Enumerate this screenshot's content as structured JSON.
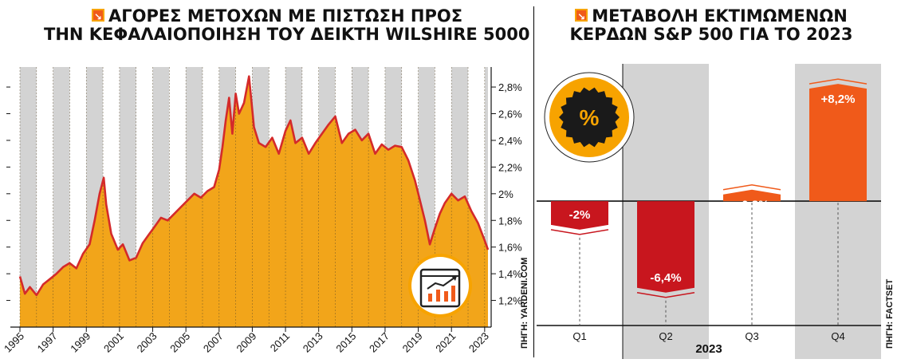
{
  "left": {
    "title_line1": "ΑΓΟΡΕΣ ΜΕΤΟΧΩΝ ΜΕ ΠΙΣΤΩΣΗ ΠΡΟΣ",
    "title_line2": "ΤΗΝ ΚΕΦΑΛΑΙΟΠΟΙΗΣΗ ΤΟΥ ΔΕΙΚΤΗ WILSHIRE 5000",
    "source": "ΠΗΓΗ: YARDENI.COM"
  },
  "right": {
    "title_line1": "ΜΕΤΑΒΟΛΗ ΕΚΤΙΜΩΜΕΝΩΝ",
    "title_line2": "ΚΕΡΔΩΝ S&P 500 ΓΙΑ ΤΟ 2023",
    "source": "ΠΗΓΗ: FACTSET",
    "badge_symbol": "%"
  },
  "colors": {
    "accent_orange": "#f05a1a",
    "area_fill": "#f2a51a",
    "line_red": "#d42a2a",
    "bar_red": "#c8161e",
    "bar_orange": "#f05a1a",
    "band_gray": "#d3d3d3"
  },
  "icons": [
    "arrow-down-right-icon",
    "chart-growth-icon",
    "percent-badge-icon"
  ],
  "chart_data": [
    {
      "type": "area",
      "x_ticks": [
        "1995",
        "1997",
        "1999",
        "2001",
        "2003",
        "2005",
        "2007",
        "2009",
        "2011",
        "2013",
        "2015",
        "2017",
        "2019",
        "2021",
        "2023"
      ],
      "y_ticks": [
        "1,2%",
        "1,4%",
        "1,6%",
        "1,8%",
        "2%",
        "2,2%",
        "2,4%",
        "2,6%",
        "2,8%"
      ],
      "xlim": [
        1995,
        2023.2
      ],
      "ylim": [
        1.0,
        2.95
      ],
      "unit": "%",
      "alternating_year_bands": true,
      "series": [
        {
          "x": [
            1995.0,
            1995.3,
            1995.6,
            1996.0,
            1996.4,
            1996.8,
            1997.2,
            1997.6,
            1998.0,
            1998.4,
            1998.8,
            1999.2,
            1999.5,
            1999.8,
            2000.05,
            2000.2,
            2000.5,
            2000.9,
            2001.2,
            2001.6,
            2002.0,
            2002.4,
            2002.8,
            2003.1,
            2003.5,
            2003.9,
            2004.3,
            2004.7,
            2005.1,
            2005.5,
            2005.9,
            2006.3,
            2006.7,
            2007.0,
            2007.2,
            2007.4,
            2007.6,
            2007.8,
            2008.0,
            2008.2,
            2008.5,
            2008.8,
            2009.1,
            2009.4,
            2009.8,
            2010.2,
            2010.6,
            2011.0,
            2011.3,
            2011.6,
            2012.0,
            2012.4,
            2012.8,
            2013.2,
            2013.6,
            2014.0,
            2014.4,
            2014.8,
            2015.2,
            2015.6,
            2016.0,
            2016.4,
            2016.8,
            2017.2,
            2017.6,
            2018.0,
            2018.4,
            2018.8,
            2019.1,
            2019.4,
            2019.7,
            2020.0,
            2020.3,
            2020.6,
            2021.0,
            2021.4,
            2021.8,
            2022.2,
            2022.6,
            2023.0,
            2023.2
          ],
          "y": [
            1.38,
            1.25,
            1.3,
            1.24,
            1.32,
            1.36,
            1.4,
            1.45,
            1.48,
            1.44,
            1.55,
            1.62,
            1.8,
            2.0,
            2.12,
            1.92,
            1.7,
            1.58,
            1.62,
            1.5,
            1.52,
            1.63,
            1.7,
            1.75,
            1.82,
            1.8,
            1.85,
            1.9,
            1.95,
            2.0,
            1.97,
            2.02,
            2.05,
            2.18,
            2.35,
            2.55,
            2.72,
            2.45,
            2.75,
            2.6,
            2.68,
            2.88,
            2.5,
            2.38,
            2.35,
            2.42,
            2.3,
            2.47,
            2.55,
            2.38,
            2.42,
            2.3,
            2.38,
            2.45,
            2.52,
            2.58,
            2.38,
            2.45,
            2.48,
            2.4,
            2.45,
            2.3,
            2.37,
            2.33,
            2.36,
            2.35,
            2.25,
            2.1,
            1.95,
            1.8,
            1.62,
            1.74,
            1.85,
            1.93,
            2.0,
            1.95,
            1.98,
            1.87,
            1.78,
            1.65,
            1.58
          ]
        }
      ]
    },
    {
      "type": "bar",
      "xlabel": "2023",
      "categories": [
        "Q1",
        "Q2",
        "Q3",
        "Q4"
      ],
      "values": [
        -2,
        -6.4,
        0.8,
        8.2
      ],
      "value_labels": [
        "-2%",
        "-6,4%",
        "+0,8%",
        "+8,2%"
      ],
      "ylim": [
        -8.7,
        9.6
      ],
      "shaded_categories": [
        "Q2",
        "Q4"
      ]
    }
  ]
}
